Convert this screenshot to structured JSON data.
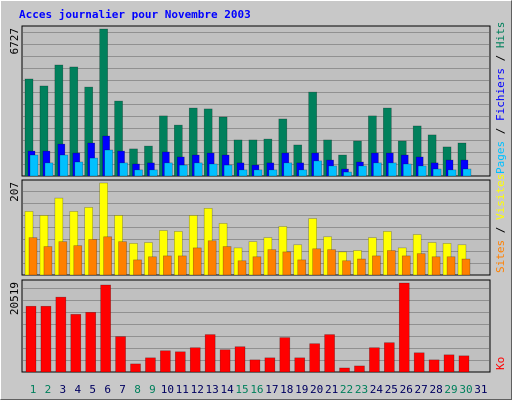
{
  "chart_data": [
    {
      "type": "bar",
      "title": "Acces journalier pour Novembre 2003",
      "ylim": [
        0,
        6727
      ],
      "yticks": [
        6727
      ],
      "series": [
        {
          "name": "Hits",
          "color": "#00805c",
          "values": [
            4440,
            4120,
            5080,
            4990,
            4070,
            6727,
            3430,
            1240,
            1370,
            2750,
            2330,
            3110,
            3070,
            2700,
            1650,
            1650,
            1690,
            2610,
            1420,
            3840,
            1650,
            960,
            1600,
            2750,
            3110,
            1600,
            2290,
            1880,
            1330,
            1510,
            null
          ]
        },
        {
          "name": "Fichiers",
          "color": "#0000ff",
          "values": [
            1140,
            1140,
            1460,
            1050,
            1510,
            1830,
            1140,
            550,
            600,
            1100,
            870,
            960,
            1050,
            960,
            600,
            500,
            600,
            1050,
            600,
            1050,
            730,
            320,
            640,
            1050,
            1050,
            960,
            870,
            600,
            730,
            730,
            null
          ]
        },
        {
          "name": "Pages",
          "color": "#00c0ff",
          "values": [
            960,
            600,
            960,
            640,
            820,
            1190,
            600,
            280,
            280,
            600,
            500,
            600,
            550,
            500,
            280,
            280,
            280,
            600,
            280,
            690,
            460,
            180,
            460,
            600,
            600,
            550,
            460,
            320,
            280,
            320,
            null
          ]
        }
      ]
    },
    {
      "type": "bar",
      "ylim": [
        0,
        207
      ],
      "yticks": [
        207
      ],
      "series": [
        {
          "name": "Visites",
          "color": "#ffff00",
          "values": [
            143,
            134,
            173,
            143,
            152,
            207,
            134,
            71,
            73,
            100,
            98,
            134,
            150,
            116,
            61,
            75,
            84,
            109,
            68,
            127,
            86,
            52,
            55,
            84,
            98,
            61,
            91,
            73,
            71,
            68,
            null
          ]
        },
        {
          "name": "Sites",
          "color": "#ff8000",
          "values": [
            84,
            64,
            75,
            66,
            80,
            86,
            75,
            34,
            41,
            43,
            43,
            61,
            77,
            64,
            32,
            41,
            57,
            52,
            34,
            59,
            57,
            32,
            36,
            43,
            55,
            43,
            48,
            41,
            41,
            36,
            null
          ]
        }
      ]
    },
    {
      "type": "bar",
      "ylim": [
        0,
        20519
      ],
      "yticks": [
        20519
      ],
      "categories": [
        "1",
        "2",
        "3",
        "4",
        "5",
        "6",
        "7",
        "8",
        "9",
        "10",
        "11",
        "12",
        "13",
        "14",
        "15",
        "16",
        "17",
        "18",
        "19",
        "20",
        "21",
        "22",
        "23",
        "24",
        "25",
        "26",
        "27",
        "28",
        "29",
        "30",
        "31"
      ],
      "category_colors": [
        "#00805c",
        "#00805c",
        "#000060",
        "#000060",
        "#000060",
        "#000060",
        "#000060",
        "#00805c",
        "#00805c",
        "#000060",
        "#000060",
        "#000060",
        "#000060",
        "#000060",
        "#00805c",
        "#00805c",
        "#000060",
        "#000060",
        "#000060",
        "#000060",
        "#000060",
        "#00805c",
        "#00805c",
        "#000060",
        "#000060",
        "#000060",
        "#000060",
        "#000060",
        "#00805c",
        "#00805c",
        "#000060"
      ],
      "series": [
        {
          "name": "Ko",
          "color": "#ff0000",
          "values": [
            15160,
            15160,
            17260,
            13290,
            13760,
            20060,
            8160,
            1870,
            3270,
            4900,
            4660,
            5600,
            8630,
            5130,
            5830,
            2800,
            3270,
            7930,
            3270,
            6530,
            8630,
            930,
            1400,
            5600,
            6760,
            20519,
            4430,
            2800,
            3960,
            3730,
            null
          ]
        }
      ]
    }
  ]
}
